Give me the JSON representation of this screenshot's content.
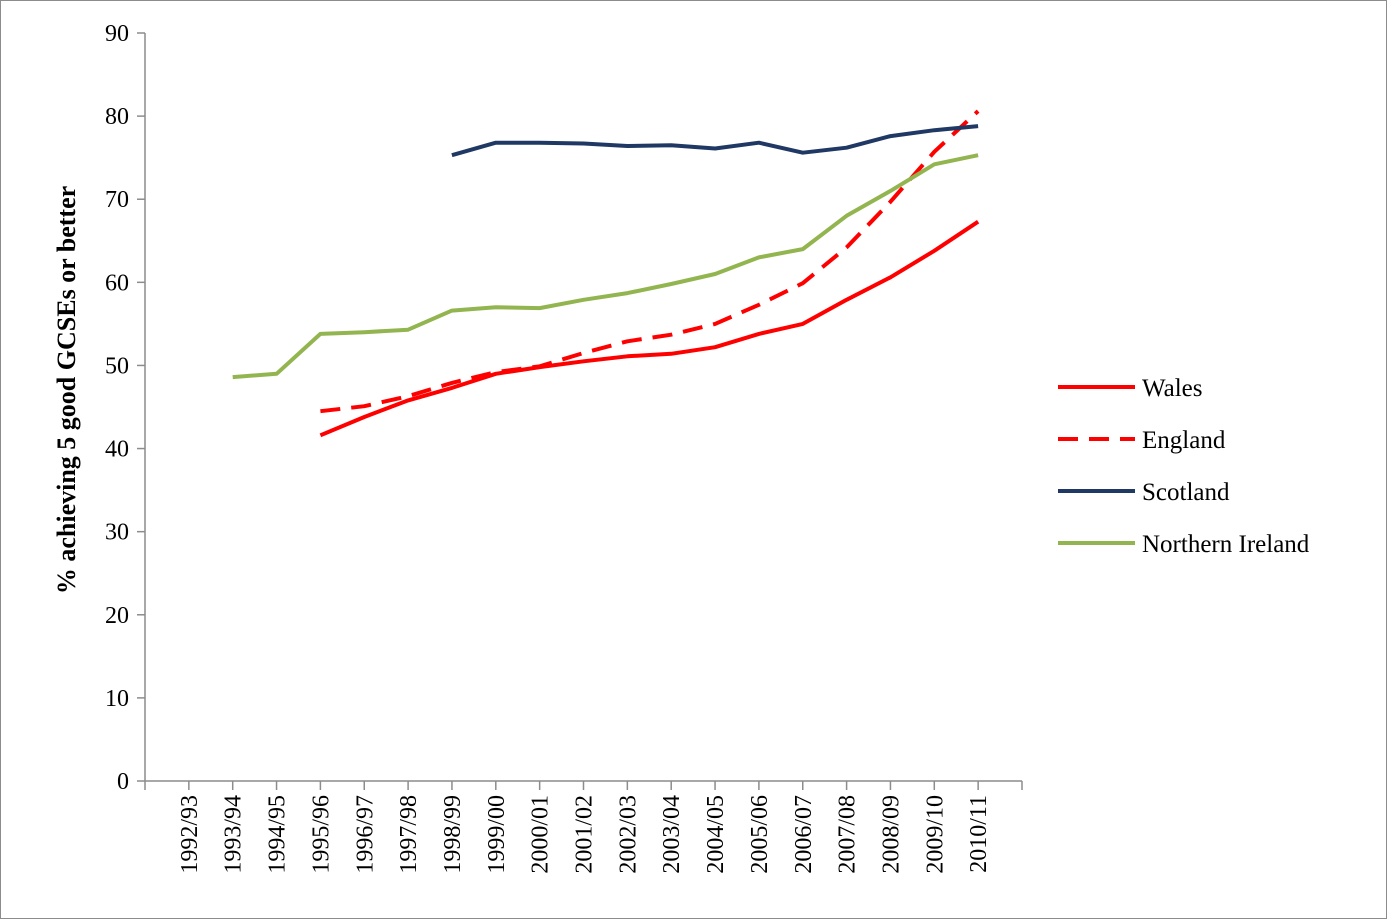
{
  "chart_data": {
    "type": "line",
    "title": "",
    "xlabel": "",
    "ylabel": "% achieving 5 good GCSEs or better",
    "ylim": [
      0,
      90
    ],
    "yticks": [
      0,
      10,
      20,
      30,
      40,
      50,
      60,
      70,
      80,
      90
    ],
    "grid": false,
    "legend_position": "right",
    "categories": [
      "1992/93",
      "1993/94",
      "1994/95",
      "1995/96",
      "1996/97",
      "1997/98",
      "1998/99",
      "1999/00",
      "2000/01",
      "2001/02",
      "2002/03",
      "2003/04",
      "2004/05",
      "2005/06",
      "2006/07",
      "2007/08",
      "2008/09",
      "2009/10",
      "2010/11"
    ],
    "series": [
      {
        "name": "Wales",
        "color": "#ff0000",
        "dash": "solid",
        "values": [
          null,
          null,
          null,
          41.6,
          43.8,
          45.8,
          47.3,
          49.0,
          49.8,
          50.5,
          51.1,
          51.4,
          52.2,
          53.8,
          55.0,
          57.9,
          60.6,
          63.8,
          67.3
        ]
      },
      {
        "name": "England",
        "color": "#ff0000",
        "dash": "dashed",
        "values": [
          null,
          null,
          null,
          44.5,
          45.1,
          46.3,
          47.9,
          49.2,
          49.9,
          51.5,
          52.9,
          53.7,
          55.0,
          57.3,
          59.9,
          64.2,
          69.7,
          75.7,
          80.6
        ]
      },
      {
        "name": "Scotland",
        "color": "#1f3864",
        "dash": "solid",
        "values": [
          null,
          null,
          null,
          null,
          null,
          null,
          75.3,
          76.8,
          76.8,
          76.7,
          76.4,
          76.5,
          76.1,
          76.8,
          75.6,
          76.2,
          77.6,
          78.3,
          78.8
        ]
      },
      {
        "name": "Northern Ireland",
        "color": "#92b550",
        "dash": "solid",
        "values": [
          null,
          48.6,
          49.0,
          53.8,
          54.0,
          54.3,
          56.6,
          57.0,
          56.9,
          57.9,
          58.7,
          59.8,
          61.0,
          63.0,
          64.0,
          68.0,
          71.0,
          74.2,
          75.3
        ]
      }
    ]
  }
}
